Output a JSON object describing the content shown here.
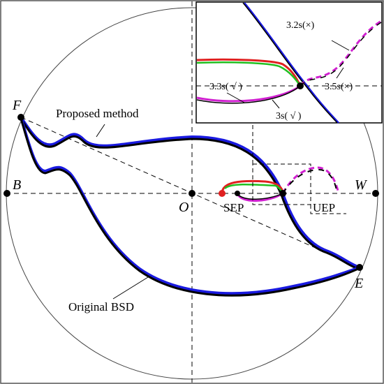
{
  "point_labels": {
    "F": "F",
    "B": "B",
    "O": "O",
    "W": "W",
    "E": "E"
  },
  "annotations": {
    "proposed": "Proposed method",
    "original": "Original BSD",
    "sep": "SEP",
    "uep": "UEP"
  },
  "inset_labels": {
    "t32": "3.2s(×)",
    "t33": "3.3s( √ )",
    "t35": "3.5s(×)",
    "t3": "3s( √ )"
  }
}
